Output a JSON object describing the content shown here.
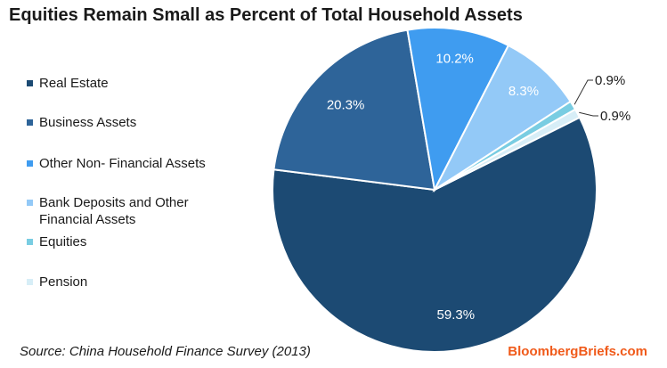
{
  "chart_data": {
    "type": "pie",
    "title": "Equities Remain Small as Percent of Total Household Assets",
    "slices": [
      {
        "label": "Real Estate",
        "value": 59.3,
        "value_label": "59.3%",
        "color": "#1c4a73"
      },
      {
        "label": "Business Assets",
        "value": 20.3,
        "value_label": "20.3%",
        "color": "#2e6499"
      },
      {
        "label": "Other Non- Financial Assets",
        "value": 10.2,
        "value_label": "10.2%",
        "color": "#3f9cf0"
      },
      {
        "label": "Bank Deposits and Other\nFinancial Assets",
        "value": 8.3,
        "value_label": "8.3%",
        "color": "#93c9f7"
      },
      {
        "label": "Equities",
        "value": 0.9,
        "value_label": "0.9%",
        "color": "#79cde2"
      },
      {
        "label": "Pension",
        "value": 0.9,
        "value_label": "0.9%",
        "color": "#d7eef7"
      }
    ],
    "legend_position": "left"
  },
  "footer": {
    "source": "Source: China Household Finance Survey (2013)",
    "brand": "BloombergBriefs.com"
  }
}
